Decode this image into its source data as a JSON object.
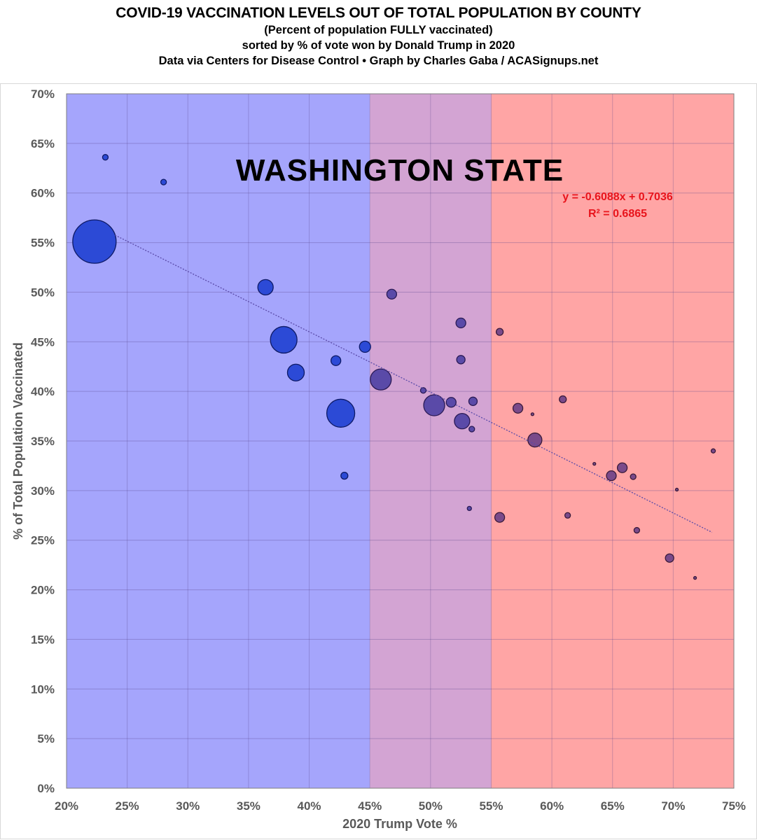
{
  "header": {
    "title": "COVID-19 VACCINATION LEVELS OUT OF TOTAL POPULATION BY COUNTY",
    "subtitle_1": "(Percent of population FULLY vaccinated)",
    "subtitle_2": "sorted by % of vote won by Donald Trump in 2020",
    "subtitle_3": "Data via Centers for Disease Control • Graph by Charles Gaba / ACASignups.net"
  },
  "chart_data": {
    "type": "scatter",
    "title": "WASHINGTON STATE",
    "xlabel": "2020 Trump Vote %",
    "ylabel": "% of Total Population Vaccinated",
    "xlim": [
      20,
      75
    ],
    "ylim": [
      0,
      70
    ],
    "x_ticks": [
      20,
      25,
      30,
      35,
      40,
      45,
      50,
      55,
      60,
      65,
      70,
      75
    ],
    "y_ticks": [
      0,
      5,
      10,
      15,
      20,
      25,
      30,
      35,
      40,
      45,
      50,
      55,
      60,
      65,
      70
    ],
    "x_tick_labels": [
      "20%",
      "25%",
      "30%",
      "35%",
      "40%",
      "45%",
      "50%",
      "55%",
      "60%",
      "65%",
      "70%",
      "75%"
    ],
    "y_tick_labels": [
      "0%",
      "5%",
      "10%",
      "15%",
      "20%",
      "25%",
      "30%",
      "35%",
      "40%",
      "45%",
      "50%",
      "55%",
      "60%",
      "65%",
      "70%"
    ],
    "grid": true,
    "bubble_size_note": "relative county population",
    "regions": [
      {
        "name": "blue",
        "from": 20,
        "to": 45,
        "color": "#a5a5fc"
      },
      {
        "name": "purple",
        "from": 45,
        "to": 55,
        "color": "#d3a4d3"
      },
      {
        "name": "red",
        "from": 55,
        "to": 75,
        "color": "#ffa5a5"
      }
    ],
    "points": [
      {
        "x": 23.2,
        "y": 63.6,
        "size": 4
      },
      {
        "x": 28.0,
        "y": 61.1,
        "size": 4
      },
      {
        "x": 22.3,
        "y": 55.1,
        "size": 31
      },
      {
        "x": 36.4,
        "y": 50.5,
        "size": 11
      },
      {
        "x": 37.9,
        "y": 45.2,
        "size": 19
      },
      {
        "x": 38.9,
        "y": 41.9,
        "size": 12
      },
      {
        "x": 42.2,
        "y": 43.1,
        "size": 7
      },
      {
        "x": 42.6,
        "y": 37.8,
        "size": 20
      },
      {
        "x": 42.9,
        "y": 31.5,
        "size": 5
      },
      {
        "x": 44.6,
        "y": 44.5,
        "size": 8
      },
      {
        "x": 45.9,
        "y": 41.2,
        "size": 15
      },
      {
        "x": 46.8,
        "y": 49.8,
        "size": 7
      },
      {
        "x": 49.4,
        "y": 40.1,
        "size": 4
      },
      {
        "x": 50.3,
        "y": 38.6,
        "size": 15
      },
      {
        "x": 51.7,
        "y": 38.9,
        "size": 7
      },
      {
        "x": 52.5,
        "y": 46.9,
        "size": 7
      },
      {
        "x": 52.5,
        "y": 43.2,
        "size": 6
      },
      {
        "x": 52.6,
        "y": 37.0,
        "size": 11
      },
      {
        "x": 53.5,
        "y": 39.0,
        "size": 6
      },
      {
        "x": 53.4,
        "y": 36.2,
        "size": 4
      },
      {
        "x": 53.2,
        "y": 28.2,
        "size": 3
      },
      {
        "x": 55.7,
        "y": 46.0,
        "size": 5
      },
      {
        "x": 55.7,
        "y": 27.3,
        "size": 7
      },
      {
        "x": 57.2,
        "y": 38.3,
        "size": 7
      },
      {
        "x": 58.4,
        "y": 37.7,
        "size": 2
      },
      {
        "x": 58.6,
        "y": 35.1,
        "size": 10
      },
      {
        "x": 60.9,
        "y": 39.2,
        "size": 5
      },
      {
        "x": 61.3,
        "y": 27.5,
        "size": 4
      },
      {
        "x": 63.5,
        "y": 32.7,
        "size": 2
      },
      {
        "x": 64.9,
        "y": 31.5,
        "size": 7
      },
      {
        "x": 65.8,
        "y": 32.3,
        "size": 7
      },
      {
        "x": 66.7,
        "y": 31.4,
        "size": 4
      },
      {
        "x": 67.0,
        "y": 26.0,
        "size": 4
      },
      {
        "x": 69.7,
        "y": 23.2,
        "size": 6
      },
      {
        "x": 70.3,
        "y": 30.1,
        "size": 2
      },
      {
        "x": 71.8,
        "y": 21.2,
        "size": 2
      },
      {
        "x": 73.3,
        "y": 34.0,
        "size": 3
      }
    ],
    "trendline": {
      "slope": -0.6088,
      "intercept": 0.7036,
      "x_range": [
        24.0,
        73.2
      ],
      "equation": "y = -0.6088x + 0.7036",
      "r_squared": "R² = 0.6865"
    },
    "annotations": [
      "WASHINGTON STATE",
      "y = -0.6088x + 0.7036",
      "R² = 0.6865"
    ]
  }
}
